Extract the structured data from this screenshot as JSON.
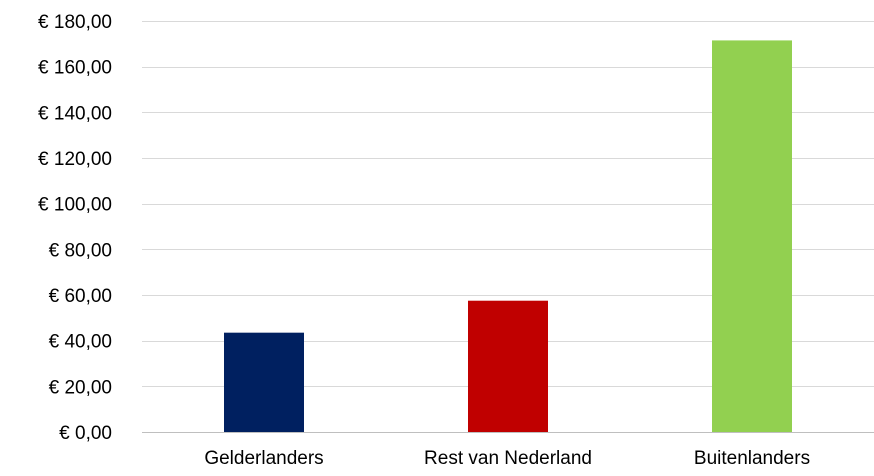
{
  "chart_data": {
    "type": "bar",
    "title": "",
    "xlabel": "",
    "ylabel": "",
    "categories": [
      "Gelderlanders",
      "Rest van Nederland",
      "Buitenlanders"
    ],
    "values": [
      43.5,
      57.5,
      171.5
    ],
    "colors": [
      "#002060",
      "#c00000",
      "#92d050"
    ],
    "ylim": [
      0,
      180
    ],
    "y_ticks": [
      0,
      20,
      40,
      60,
      80,
      100,
      120,
      140,
      160,
      180
    ],
    "y_tick_labels": [
      "€ 0,00",
      "€ 20,00",
      "€ 40,00",
      "€ 60,00",
      "€ 80,00",
      "€ 100,00",
      "€ 120,00",
      "€ 140,00",
      "€ 160,00",
      "€ 180,00"
    ],
    "grid": true,
    "legend": "none"
  }
}
